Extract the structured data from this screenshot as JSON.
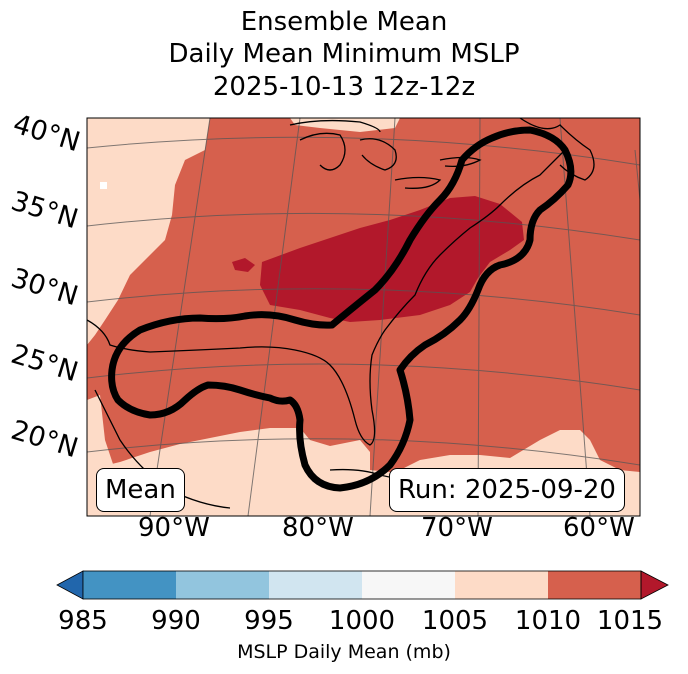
{
  "title": {
    "line1": "Ensemble Mean",
    "line2": "Daily Mean Minimum MSLP",
    "line3": "2025-10-13 12z-12z"
  },
  "map": {
    "lat_labels": [
      "40°N",
      "35°N",
      "30°N",
      "25°N",
      "20°N"
    ],
    "lon_labels": [
      "90°W",
      "80°W",
      "70°W",
      "60°W"
    ],
    "mean_box": "Mean",
    "run_box": "Run: 2025-09-20",
    "colors": {
      "mslp_1005_1010": "#fddbc7",
      "mslp_1010_1015": "#d6604d",
      "mslp_above_1015": "#b2182b",
      "contour": "#000000"
    }
  },
  "colorbar": {
    "label": "MSLP Daily Mean (mb)",
    "ticks": [
      "985",
      "990",
      "995",
      "1000",
      "1005",
      "1010",
      "1015"
    ],
    "colors": [
      "#2166ac",
      "#4393c3",
      "#92c5de",
      "#d1e5f0",
      "#f7f7f7",
      "#fddbc7",
      "#d6604d",
      "#b2182b"
    ]
  }
}
